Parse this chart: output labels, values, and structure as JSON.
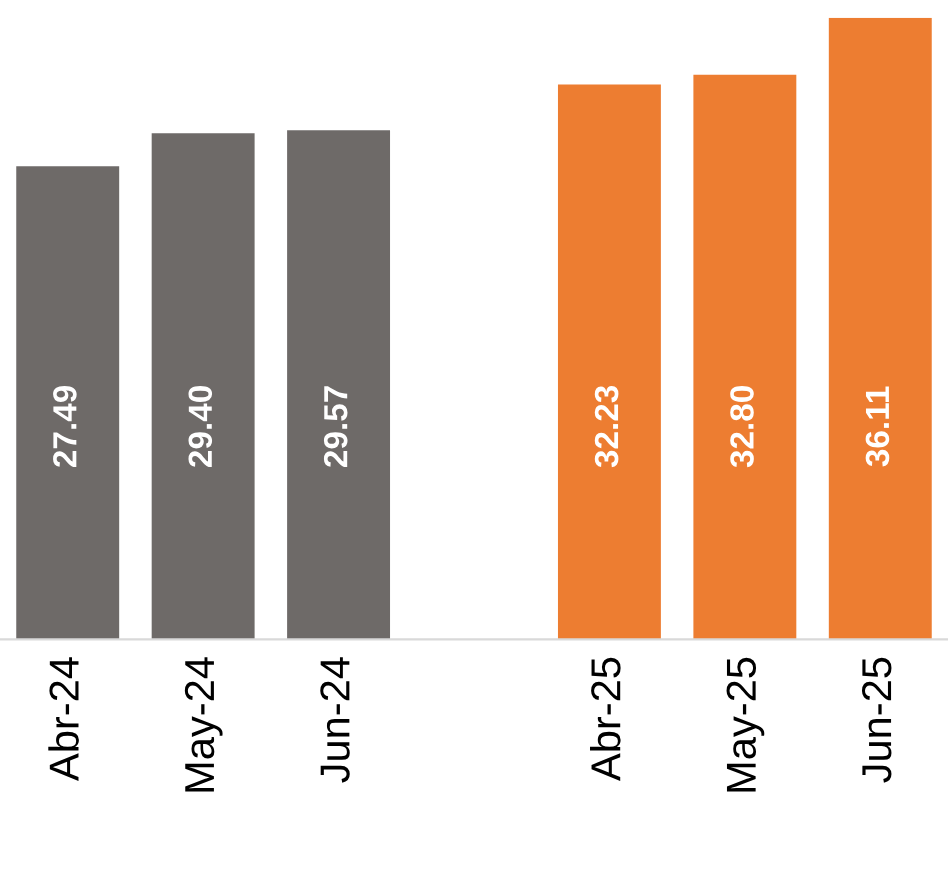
{
  "chart_data": {
    "type": "bar",
    "categories": [
      "Abr-24",
      "May-24",
      "Jun-24",
      null,
      "Abr-25",
      "May-25",
      "Jun-25"
    ],
    "values": [
      27.49,
      29.4,
      29.57,
      null,
      32.23,
      32.8,
      36.11
    ],
    "colors": [
      "#6e6a68",
      "#6e6a68",
      "#6e6a68",
      null,
      "#ed7d31",
      "#ed7d31",
      "#ed7d31"
    ],
    "value_labels": [
      "27.49",
      "29.40",
      "29.57",
      null,
      "32.23",
      "32.80",
      "36.11"
    ],
    "grid": false,
    "legend": false
  }
}
